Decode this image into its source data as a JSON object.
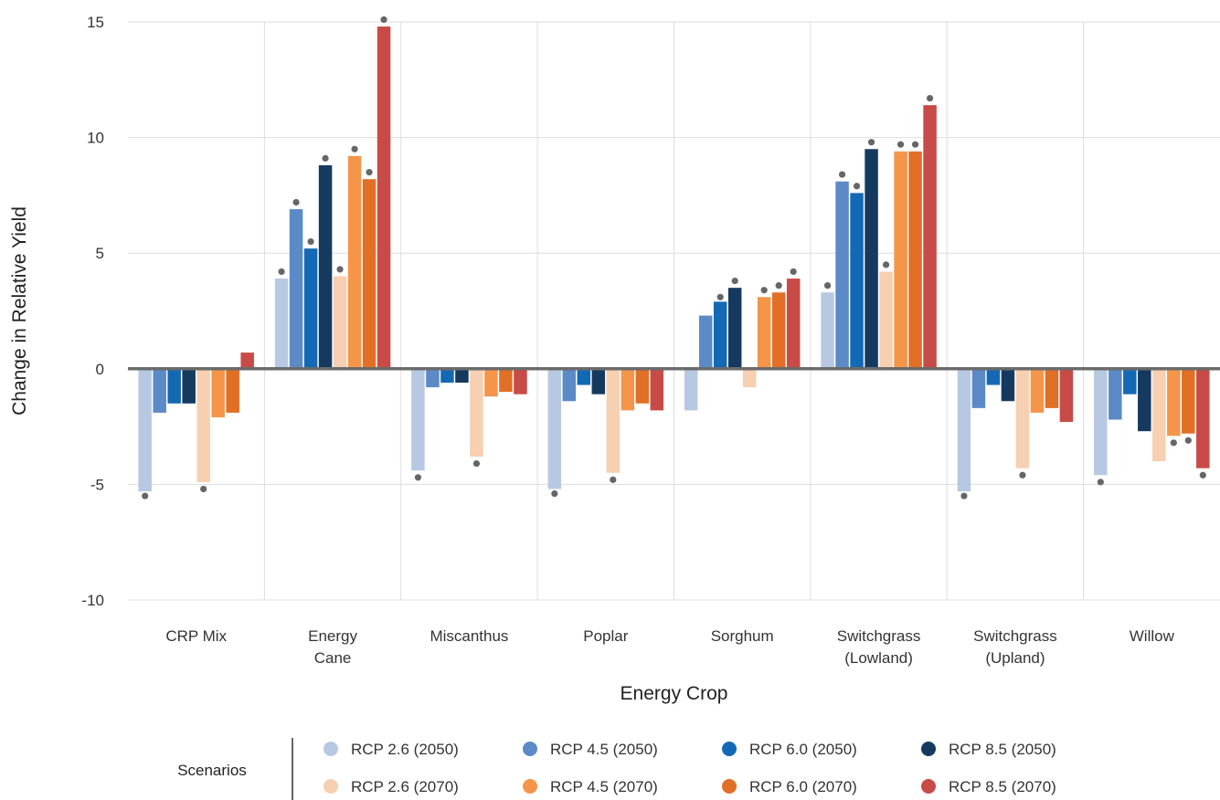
{
  "chart_data": {
    "type": "bar",
    "xlabel": "Energy Crop",
    "ylabel": "Change in Relative Yield",
    "ylim": [
      -10,
      15
    ],
    "yticks": [
      15,
      10,
      5,
      0,
      -5,
      -10
    ],
    "grid": true,
    "categories": [
      [
        "CRP Mix"
      ],
      [
        "Energy",
        "Cane"
      ],
      [
        "Miscanthus"
      ],
      [
        "Poplar"
      ],
      [
        "Sorghum"
      ],
      [
        "Switchgrass",
        "(Lowland)"
      ],
      [
        "Switchgrass",
        "(Upland)"
      ],
      [
        "Willow"
      ]
    ],
    "series": [
      {
        "name": "RCP 2.6 (2050)",
        "color": "#b7c9e2",
        "values": [
          -5.3,
          3.9,
          -4.4,
          -5.2,
          -1.8,
          3.3,
          -5.3,
          -4.6
        ],
        "markers": [
          -5.5,
          4.2,
          -4.7,
          -5.4,
          null,
          3.6,
          -5.5,
          -4.9
        ]
      },
      {
        "name": "RCP 4.5 (2050)",
        "color": "#5b8ac7",
        "values": [
          -1.9,
          6.9,
          -0.8,
          -1.4,
          2.3,
          8.1,
          -1.7,
          -2.2
        ],
        "markers": [
          null,
          7.2,
          null,
          null,
          null,
          8.4,
          null,
          null
        ]
      },
      {
        "name": "RCP 6.0 (2050)",
        "color": "#1469b4",
        "values": [
          -1.5,
          5.2,
          -0.6,
          -0.7,
          2.9,
          7.6,
          -0.7,
          -1.1
        ],
        "markers": [
          null,
          5.5,
          null,
          null,
          3.1,
          7.9,
          null,
          null
        ]
      },
      {
        "name": "RCP 8.5 (2050)",
        "color": "#163a5f",
        "values": [
          -1.5,
          8.8,
          -0.6,
          -1.1,
          3.5,
          9.5,
          -1.4,
          -2.7
        ],
        "markers": [
          null,
          9.1,
          null,
          null,
          3.8,
          9.8,
          null,
          null
        ]
      },
      {
        "name": "RCP 2.6 (2070)",
        "color": "#f7cfb1",
        "values": [
          -4.9,
          4.0,
          -3.8,
          -4.5,
          -0.8,
          4.2,
          -4.3,
          -4.0
        ],
        "markers": [
          -5.2,
          4.3,
          -4.1,
          -4.8,
          null,
          4.5,
          -4.6,
          null
        ]
      },
      {
        "name": "RCP 4.5 (2070)",
        "color": "#f5954a",
        "values": [
          -2.1,
          9.2,
          -1.2,
          -1.8,
          3.1,
          9.4,
          -1.9,
          -2.9
        ],
        "markers": [
          null,
          9.5,
          null,
          null,
          3.4,
          9.7,
          null,
          -3.2
        ]
      },
      {
        "name": "RCP 6.0 (2070)",
        "color": "#e16f26",
        "values": [
          -1.9,
          8.2,
          -1.0,
          -1.5,
          3.3,
          9.4,
          -1.7,
          -2.8
        ],
        "markers": [
          null,
          8.5,
          null,
          null,
          3.6,
          9.7,
          null,
          -3.1
        ]
      },
      {
        "name": "RCP 8.5 (2070)",
        "color": "#c84b47",
        "values": [
          0.7,
          14.8,
          -1.1,
          -1.8,
          3.9,
          11.4,
          -2.3,
          -4.3
        ],
        "markers": [
          null,
          15.1,
          null,
          null,
          4.2,
          11.7,
          null,
          -4.6
        ]
      }
    ],
    "legend": {
      "title": "Scenarios",
      "placement": "bottom"
    }
  }
}
